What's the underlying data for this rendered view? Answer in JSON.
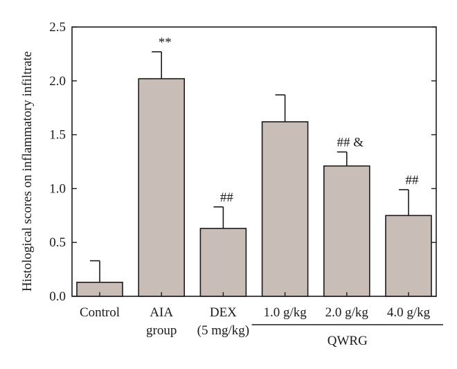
{
  "chart_data": {
    "type": "bar",
    "ylabel": "Histological scores on inflammatory infiltrate",
    "xlabel": "",
    "ylim": [
      0,
      2.5
    ],
    "yticks": [
      "0.0",
      "0.5",
      "1.0",
      "1.5",
      "2.0",
      "2.5"
    ],
    "grid": false,
    "categories": [
      {
        "lines": [
          "Control"
        ]
      },
      {
        "lines": [
          "AIA",
          "group"
        ]
      },
      {
        "lines": [
          "DEX",
          "(5 mg/kg)"
        ]
      },
      {
        "lines": [
          "1.0 g/kg"
        ]
      },
      {
        "lines": [
          "2.0 g/kg"
        ]
      },
      {
        "lines": [
          "4.0 g/kg"
        ]
      }
    ],
    "values": [
      0.13,
      2.02,
      0.63,
      1.62,
      1.21,
      0.75
    ],
    "error": [
      0.2,
      0.25,
      0.2,
      0.25,
      0.13,
      0.24
    ],
    "annotations": [
      "",
      "**",
      "##",
      "",
      "## &",
      "##"
    ],
    "group_bracket": {
      "label": "QWRG",
      "from_category": 3,
      "to_category": 5
    },
    "bar_color": "#c9bdb7",
    "edge_color": "#1a1a1a"
  }
}
